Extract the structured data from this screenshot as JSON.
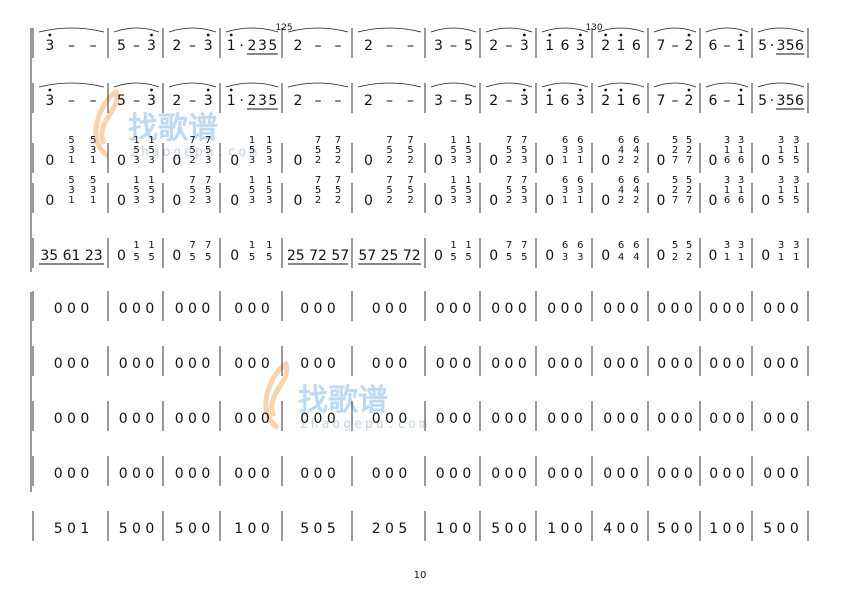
{
  "page_number": "10",
  "measure_numbers": [
    {
      "label": "125",
      "measure": 4
    },
    {
      "label": "130",
      "measure": 9
    }
  ],
  "watermark": {
    "brand": "找歌谱",
    "url": "zhaogepu.com",
    "color": "#a9cdf0",
    "clef_color": "#f5c08a"
  },
  "systems": [
    {
      "kind": "melody",
      "measures": [
        [
          {
            "n": "3",
            "high": 1
          },
          {
            "n": "–"
          },
          {
            "n": "–"
          }
        ],
        [
          {
            "n": "5"
          },
          {
            "n": "–"
          },
          {
            "n": "3",
            "high": 1
          }
        ],
        [
          {
            "n": "2"
          },
          {
            "n": "–"
          },
          {
            "n": "3",
            "high": 1
          }
        ],
        [
          {
            "n": "1",
            "high": 1
          },
          {
            "n": "·"
          },
          {
            "n": "2",
            "ul": 1
          },
          {
            "n": "3",
            "ul": 1
          },
          {
            "n": "5",
            "ul": 1
          }
        ],
        [
          {
            "n": "2"
          },
          {
            "n": "–"
          },
          {
            "n": "–"
          }
        ],
        [
          {
            "n": "2"
          },
          {
            "n": "–"
          },
          {
            "n": "–"
          }
        ],
        [
          {
            "n": "3"
          },
          {
            "n": "–"
          },
          {
            "n": "5"
          }
        ],
        [
          {
            "n": "2"
          },
          {
            "n": "–"
          },
          {
            "n": "3",
            "high": 1
          }
        ],
        [
          {
            "n": "1",
            "high": 1
          },
          {
            "n": "6"
          },
          {
            "n": "3",
            "high": 1
          }
        ],
        [
          {
            "n": "2",
            "high": 1
          },
          {
            "n": "1",
            "high": 1
          },
          {
            "n": "6"
          }
        ],
        [
          {
            "n": "7"
          },
          {
            "n": "–"
          },
          {
            "n": "2",
            "high": 1
          }
        ],
        [
          {
            "n": "6"
          },
          {
            "n": "–"
          },
          {
            "n": "1",
            "high": 1
          }
        ],
        [
          {
            "n": "5"
          },
          {
            "n": "·"
          },
          {
            "n": "3",
            "ul": 1
          },
          {
            "n": "5",
            "ul": 1
          },
          {
            "n": "6",
            "ul": 1
          }
        ]
      ]
    },
    {
      "kind": "melody",
      "measures": [
        [
          {
            "n": "3",
            "high": 1
          },
          {
            "n": "–"
          },
          {
            "n": "–"
          }
        ],
        [
          {
            "n": "5"
          },
          {
            "n": "–"
          },
          {
            "n": "3",
            "high": 1
          }
        ],
        [
          {
            "n": "2"
          },
          {
            "n": "–"
          },
          {
            "n": "3",
            "high": 1
          }
        ],
        [
          {
            "n": "1",
            "high": 1
          },
          {
            "n": "·"
          },
          {
            "n": "2",
            "ul": 1
          },
          {
            "n": "3",
            "ul": 1
          },
          {
            "n": "5",
            "ul": 1
          }
        ],
        [
          {
            "n": "2"
          },
          {
            "n": "–"
          },
          {
            "n": "–"
          }
        ],
        [
          {
            "n": "2"
          },
          {
            "n": "–"
          },
          {
            "n": "–"
          }
        ],
        [
          {
            "n": "3"
          },
          {
            "n": "–"
          },
          {
            "n": "5"
          }
        ],
        [
          {
            "n": "2"
          },
          {
            "n": "–"
          },
          {
            "n": "3",
            "high": 1
          }
        ],
        [
          {
            "n": "1",
            "high": 1
          },
          {
            "n": "6"
          },
          {
            "n": "3",
            "high": 1
          }
        ],
        [
          {
            "n": "2",
            "high": 1
          },
          {
            "n": "1",
            "high": 1
          },
          {
            "n": "6"
          }
        ],
        [
          {
            "n": "7"
          },
          {
            "n": "–"
          },
          {
            "n": "2",
            "high": 1
          }
        ],
        [
          {
            "n": "6"
          },
          {
            "n": "–"
          },
          {
            "n": "1",
            "high": 1
          }
        ],
        [
          {
            "n": "5"
          },
          {
            "n": "·"
          },
          {
            "n": "3",
            "ul": 1
          },
          {
            "n": "5",
            "ul": 1
          },
          {
            "n": "6",
            "ul": 1
          }
        ]
      ]
    },
    {
      "kind": "chords",
      "measures": [
        [
          "0",
          "531",
          "531"
        ],
        [
          "0",
          "153",
          "153"
        ],
        [
          "0",
          "752",
          "753"
        ],
        [
          "0",
          "153",
          "153"
        ],
        [
          "0",
          "752",
          "752"
        ],
        [
          "0",
          "752",
          "752"
        ],
        [
          "0",
          "153",
          "153"
        ],
        [
          "0",
          "752",
          "753"
        ],
        [
          "0",
          "631",
          "631"
        ],
        [
          "0",
          "642",
          "642"
        ],
        [
          "0",
          "527",
          "527"
        ],
        [
          "0",
          "316",
          "316"
        ],
        [
          "0",
          "315",
          "315"
        ]
      ]
    },
    {
      "kind": "chords",
      "measures": [
        [
          "0",
          "531",
          "531"
        ],
        [
          "0",
          "153",
          "153"
        ],
        [
          "0",
          "752",
          "753"
        ],
        [
          "0",
          "153",
          "153"
        ],
        [
          "0",
          "752",
          "752"
        ],
        [
          "0",
          "752",
          "752"
        ],
        [
          "0",
          "153",
          "153"
        ],
        [
          "0",
          "752",
          "753"
        ],
        [
          "0",
          "631",
          "631"
        ],
        [
          "0",
          "642",
          "642"
        ],
        [
          "0",
          "527",
          "527"
        ],
        [
          "0",
          "316",
          "316"
        ],
        [
          "0",
          "315",
          "315"
        ]
      ]
    },
    {
      "kind": "mixed",
      "measures": [
        {
          "text": "35 61 23"
        },
        {
          "chord": [
            "0",
            "15",
            "15"
          ]
        },
        {
          "chord": [
            "0",
            "75",
            "75"
          ]
        },
        {
          "chord": [
            "0",
            "15",
            "15"
          ]
        },
        {
          "text": "25 72 57"
        },
        {
          "text": "57 25 72"
        },
        {
          "chord": [
            "0",
            "15",
            "15"
          ]
        },
        {
          "chord": [
            "0",
            "75",
            "75"
          ]
        },
        {
          "chord": [
            "0",
            "63",
            "63"
          ]
        },
        {
          "chord": [
            "0",
            "64",
            "64"
          ]
        },
        {
          "chord": [
            "0",
            "52",
            "52"
          ]
        },
        {
          "chord": [
            "0",
            "31",
            "31"
          ]
        },
        {
          "chord": [
            "0",
            "31",
            "31"
          ]
        }
      ]
    },
    {
      "kind": "rest",
      "measures": [
        "0 0 0",
        "0 0 0",
        "0 0 0",
        "0 0 0",
        "0 0 0",
        "0 0 0",
        "0 0 0",
        "0 0 0",
        "0 0 0",
        "0 0 0",
        "0 0 0",
        "0 0 0",
        "0 0 0"
      ]
    },
    {
      "kind": "rest",
      "measures": [
        "0 0 0",
        "0 0 0",
        "0 0 0",
        "0 0 0",
        "0 0 0",
        "0 0 0",
        "0 0 0",
        "0 0 0",
        "0 0 0",
        "0 0 0",
        "0 0 0",
        "0 0 0",
        "0 0 0"
      ]
    },
    {
      "kind": "rest",
      "measures": [
        "0 0 0",
        "0 0 0",
        "0 0 0",
        "0 0 0",
        "0 0 0",
        "0 0 0",
        "0 0 0",
        "0 0 0",
        "0 0 0",
        "0 0 0",
        "0 0 0",
        "0 0 0",
        "0 0 0"
      ]
    },
    {
      "kind": "rest",
      "measures": [
        "0 0 0",
        "0 0 0",
        "0 0 0",
        "0 0 0",
        "0 0 0",
        "0 0 0",
        "0 0 0",
        "0 0 0",
        "0 0 0",
        "0 0 0",
        "0 0 0",
        "0 0 0",
        "0 0 0"
      ]
    },
    {
      "kind": "bass",
      "measures": [
        "5 0 1",
        "5 0 0",
        "5 0 0",
        "1 0 0",
        "5 0 5",
        "2 0 5",
        "1 0 0",
        "5 0 0",
        "1 0 0",
        "4 0 0",
        "5 0 0",
        "1 0 0",
        "5 0 0"
      ]
    }
  ]
}
